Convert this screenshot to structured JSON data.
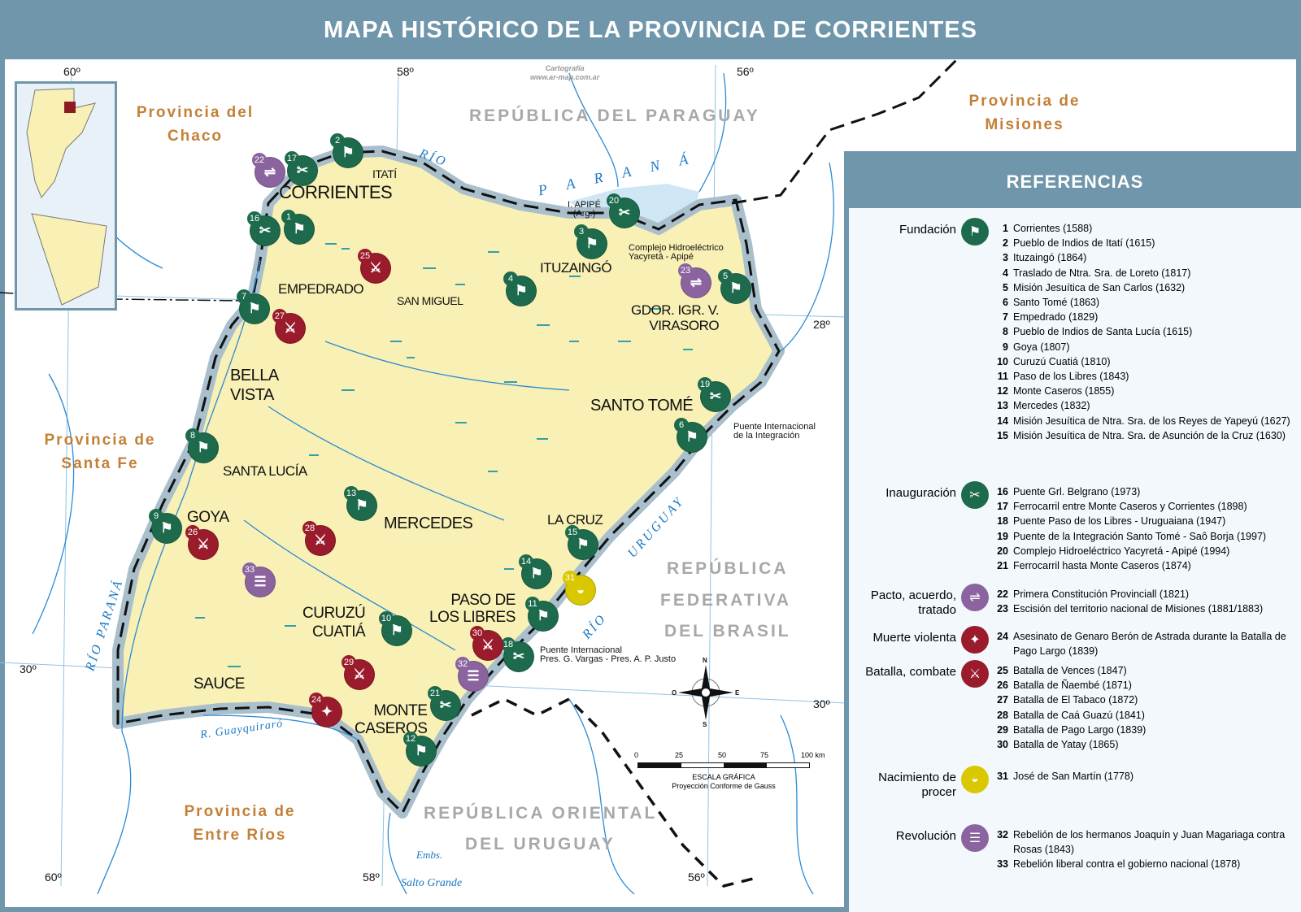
{
  "title": "MAPA HISTÓRICO DE LA PROVINCIA DE CORRIENTES",
  "credit": {
    "line1": "Cartografía",
    "line2": "www.ar-map.com.ar"
  },
  "colors": {
    "frame": "#6f96aa",
    "province": "#f8f0b4",
    "water": "#cfe6f5",
    "river": "#2a8ad4",
    "fundacion": "#1d6b4c",
    "inauguracion": "#1d6b4c",
    "pacto": "#8b649f",
    "muerte": "#9a1b2b",
    "batalla": "#9a1b2b",
    "nacimiento": "#d9c700",
    "revolucion": "#8b649f"
  },
  "regions": {
    "paraguay": "REPÚBLICA DEL PARAGUAY",
    "brasil_1": "REPÚBLICA",
    "brasil_2": "FEDERATIVA",
    "brasil_3": "DEL BRASIL",
    "uruguay_1": "REPÚBLICA ORIENTAL",
    "uruguay_2": "DEL URUGUAY",
    "chaco_1": "Provincia del",
    "chaco_2": "Chaco",
    "misiones_1": "Provincia de",
    "misiones_2": "Misiones",
    "santafe_1": "Provincia de",
    "santafe_2": "Santa Fe",
    "entrerios_1": "Provincia de",
    "entrerios_2": "Entre Ríos"
  },
  "rivers": {
    "rio_top": "RÍO",
    "parana_top": "P A R A N Á",
    "parana_west": "RÍO PARANÁ",
    "uruguay_1": "URUGUAY",
    "uruguay_2": "RÍO",
    "guayquiraro": "R. Guayquiraró",
    "embs": "Embs.",
    "salto_grande": "Salto Grande"
  },
  "places": {
    "corrientes": "CORRIENTES",
    "itati": "ITATÍ",
    "empedrado": "EMPEDRADO",
    "bella_vista_1": "BELLA",
    "bella_vista_2": "VISTA",
    "santa_lucia": "SANTA LUCÍA",
    "goya": "GOYA",
    "mercedes": "MERCEDES",
    "san_miguel": "SAN MIGUEL",
    "ituzaingo": "ITUZAINGÓ",
    "virasoro_1": "GDOR. IGR. V.",
    "virasoro_2": "VIRASORO",
    "santo_tome": "SANTO TOMÉ",
    "la_cruz": "LA CRUZ",
    "libres_1": "PASO DE",
    "libres_2": "LOS LIBRES",
    "curuzu_1": "CURUZÚ",
    "curuzu_2": "CUATIÁ",
    "sauce": "SAUCE",
    "caseros_1": "MONTE",
    "caseros_2": "CASEROS",
    "apipe_1": "I. APIPÉ",
    "apipe_2": "(Arg.)"
  },
  "notes": {
    "yacyreta_1": "Complejo Hidroeléctrico",
    "yacyreta_2": "Yacyretá - Apipé",
    "integracion_1": "Puente Internacional",
    "integracion_2": "de la Integración",
    "vargas_1": "Puente Internacional",
    "vargas_2": "Pres. G. Vargas - Pres. A. P. Justo"
  },
  "coordinates": {
    "lon60_top": "60º",
    "lon58_top": "58º",
    "lon56_top": "56º",
    "lat28": "28º",
    "lat30_left": "30º",
    "lat30_right": "30º",
    "lon60_bot": "60º",
    "lon58_bot": "58º",
    "lon56_bot": "56º"
  },
  "compass": {
    "n": "N",
    "s": "S",
    "e": "E",
    "o": "O"
  },
  "scale": {
    "ticks": [
      "0",
      "25",
      "50",
      "75",
      "100 km"
    ],
    "title": "ESCALA GRÁFICA",
    "projection": "Proyección Conforme de Gauss"
  },
  "markers": [
    {
      "n": "1",
      "cat": "fundacion"
    },
    {
      "n": "2",
      "cat": "fundacion"
    },
    {
      "n": "3",
      "cat": "fundacion"
    },
    {
      "n": "4",
      "cat": "fundacion"
    },
    {
      "n": "5",
      "cat": "fundacion"
    },
    {
      "n": "6",
      "cat": "fundacion"
    },
    {
      "n": "7",
      "cat": "fundacion"
    },
    {
      "n": "8",
      "cat": "fundacion"
    },
    {
      "n": "9",
      "cat": "fundacion"
    },
    {
      "n": "10",
      "cat": "fundacion"
    },
    {
      "n": "11",
      "cat": "fundacion"
    },
    {
      "n": "12",
      "cat": "fundacion"
    },
    {
      "n": "13",
      "cat": "fundacion"
    },
    {
      "n": "14",
      "cat": "fundacion"
    },
    {
      "n": "15",
      "cat": "fundacion"
    },
    {
      "n": "16",
      "cat": "inauguracion"
    },
    {
      "n": "17",
      "cat": "inauguracion"
    },
    {
      "n": "18",
      "cat": "inauguracion"
    },
    {
      "n": "19",
      "cat": "inauguracion"
    },
    {
      "n": "20",
      "cat": "inauguracion"
    },
    {
      "n": "21",
      "cat": "inauguracion"
    },
    {
      "n": "22",
      "cat": "pacto"
    },
    {
      "n": "23",
      "cat": "pacto"
    },
    {
      "n": "24",
      "cat": "muerte"
    },
    {
      "n": "25",
      "cat": "batalla"
    },
    {
      "n": "26",
      "cat": "batalla"
    },
    {
      "n": "27",
      "cat": "batalla"
    },
    {
      "n": "28",
      "cat": "batalla"
    },
    {
      "n": "29",
      "cat": "batalla"
    },
    {
      "n": "30",
      "cat": "batalla"
    },
    {
      "n": "31",
      "cat": "nacimiento"
    },
    {
      "n": "32",
      "cat": "revolucion"
    },
    {
      "n": "33",
      "cat": "revolucion"
    }
  ],
  "legend": {
    "title": "REFERENCIAS",
    "groups": [
      {
        "cat": "fundacion",
        "label": "Fundación",
        "icon": "founder-flag-icon",
        "items": [
          {
            "n": "1",
            "text": "Corrientes (1588)"
          },
          {
            "n": "2",
            "text": "Pueblo de Indios de Itatí (1615)"
          },
          {
            "n": "3",
            "text": "Ituzaingó (1864)"
          },
          {
            "n": "4",
            "text": "Traslado de Ntra. Sra. de Loreto (1817)"
          },
          {
            "n": "5",
            "text": "Misión Jesuítica de San Carlos (1632)"
          },
          {
            "n": "6",
            "text": "Santo Tomé (1863)"
          },
          {
            "n": "7",
            "text": "Empedrado (1829)"
          },
          {
            "n": "8",
            "text": "Pueblo de Indios de Santa Lucía (1615)"
          },
          {
            "n": "9",
            "text": "Goya (1807)"
          },
          {
            "n": "10",
            "text": "Curuzú Cuatiá (1810)"
          },
          {
            "n": "11",
            "text": "Paso de los Libres (1843)"
          },
          {
            "n": "12",
            "text": "Monte Caseros (1855)"
          },
          {
            "n": "13",
            "text": "Mercedes (1832)"
          },
          {
            "n": "14",
            "text": "Misión Jesuítica de Ntra. Sra. de los Reyes de Yapeyú (1627)"
          },
          {
            "n": "15",
            "text": "Misión Jesuítica de Ntra. Sra. de Asunción de la Cruz (1630)"
          }
        ]
      },
      {
        "cat": "inauguracion",
        "label": "Inauguración",
        "icon": "ribbon-scissors-icon",
        "items": [
          {
            "n": "16",
            "text": "Puente Grl. Belgrano (1973)"
          },
          {
            "n": "17",
            "text": "Ferrocarril entre Monte Caseros y Corrientes (1898)"
          },
          {
            "n": "18",
            "text": "Puente Paso de los Libres - Uruguaiana (1947)"
          },
          {
            "n": "19",
            "text": "Puente de la Integración Santo Tomé - Saô Borja (1997)"
          },
          {
            "n": "20",
            "text": "Complejo Hidroeléctrico Yacyretá - Apipé (1994)"
          },
          {
            "n": "21",
            "text": "Ferrocarril hasta Monte Caseros (1874)"
          }
        ]
      },
      {
        "cat": "pacto",
        "label": "Pacto, acuerdo, tratado",
        "icon": "handshake-icon",
        "items": [
          {
            "n": "22",
            "text": "Primera Constitución Provinciall (1821)"
          },
          {
            "n": "23",
            "text": "Escisión del territorio nacional de Misiones (1881/1883)"
          }
        ]
      },
      {
        "cat": "muerte",
        "label": "Muerte violenta",
        "icon": "shooting-icon",
        "items": [
          {
            "n": "24",
            "text": "Asesinato de Genaro Berón de Astrada durante la Batalla de Pago Largo (1839)"
          }
        ]
      },
      {
        "cat": "batalla",
        "label": "Batalla, combate",
        "icon": "swords-fight-icon",
        "items": [
          {
            "n": "25",
            "text": "Batalla de Vences (1847)"
          },
          {
            "n": "26",
            "text": "Batalla de Ñaembé (1871)"
          },
          {
            "n": "27",
            "text": "Batalla de El Tabaco (1872)"
          },
          {
            "n": "28",
            "text": "Batalla de Caá Guazú (1841)"
          },
          {
            "n": "29",
            "text": "Batalla de Pago Largo (1839)"
          },
          {
            "n": "30",
            "text": "Batalla de Yatay (1865)"
          }
        ]
      },
      {
        "cat": "nacimiento",
        "label": "Nacimiento de procer",
        "icon": "cradle-icon",
        "items": [
          {
            "n": "31",
            "text": "José de San Martín (1778)"
          }
        ]
      },
      {
        "cat": "revolucion",
        "label": "Revolución",
        "icon": "crowd-icon",
        "items": [
          {
            "n": "32",
            "text": "Rebelión de los hermanos Joaquín y Juan Magariaga contra Rosas (1843)"
          },
          {
            "n": "33",
            "text": "Rebelión liberal contra el gobierno nacional (1878)"
          }
        ]
      }
    ]
  }
}
